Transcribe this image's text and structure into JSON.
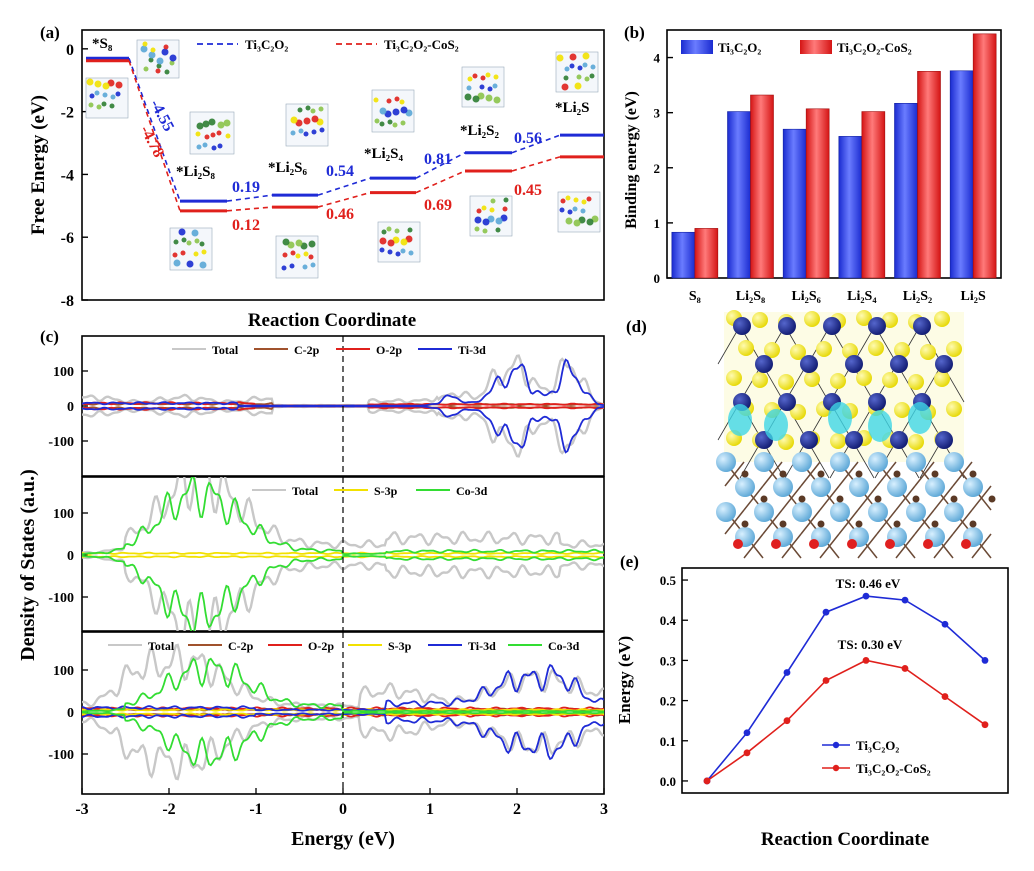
{
  "chart_data": [
    {
      "type": "line",
      "panel_label": "(a)",
      "xlabel": "Reaction Coordinate",
      "ylabel": "Free Energy (eV)",
      "ylim": [
        -8,
        0.6
      ],
      "y_ticks": [
        "0",
        "-2",
        "-4",
        "-6",
        "-8"
      ],
      "x_ticks": [],
      "states": [
        "*S8",
        "*Li2S8",
        "*Li2S6",
        "*Li2S4",
        "*Li2S2",
        "*Li2S"
      ],
      "state_labels": [
        "*S₈",
        "*Li₂S₈",
        "*Li₂S₆",
        "*Li₂S₄",
        "*Li₂S₂",
        "*Li₂S"
      ],
      "series": [
        {
          "name": "Ti₃C₂O₂",
          "color": "#1f2bd6",
          "values": [
            -0.3,
            -4.85,
            -4.66,
            -4.12,
            -3.31,
            -2.75
          ],
          "step_labels": [
            "-4.55",
            "0.19",
            "0.54",
            "0.81",
            "0.56"
          ]
        },
        {
          "name": "Ti₃C₂O₂-CoS₂",
          "color": "#e0201c",
          "values": [
            -0.38,
            -5.16,
            -5.04,
            -4.58,
            -3.89,
            -3.44
          ],
          "step_labels": [
            "-4.78",
            "0.12",
            "0.46",
            "0.69",
            "0.45"
          ]
        }
      ]
    },
    {
      "type": "bar",
      "panel_label": "(b)",
      "ylabel": "Binding energy (eV)",
      "ylim": [
        0,
        4.5
      ],
      "y_ticks": [
        "0",
        "1",
        "2",
        "3",
        "4"
      ],
      "categories": [
        "S8",
        "Li2S8",
        "Li2S6",
        "Li2S4",
        "Li2S2",
        "Li2S"
      ],
      "category_labels": [
        "S₈",
        "Li₂S₈",
        "Li₂S₆",
        "Li₂S₄",
        "Li₂S₂",
        "Li₂S"
      ],
      "legend": "top",
      "series": [
        {
          "name": "Ti₃C₂O₂",
          "color": "#2b3ff0",
          "values": [
            0.83,
            3.02,
            2.7,
            2.57,
            3.17,
            3.76
          ]
        },
        {
          "name": "Ti₃C₂O₂-CoS₂",
          "color": "#ef1f1f",
          "values": [
            0.9,
            3.32,
            3.07,
            3.02,
            3.75,
            4.43
          ]
        }
      ]
    },
    {
      "type": "line",
      "panel_label": "(c)",
      "xlabel": "Energy (eV)",
      "ylabel": "Density of States (a.u.)",
      "xlim": [
        -3,
        3
      ],
      "x_ticks": [
        "-3",
        "-2",
        "-1",
        "0",
        "1",
        "2",
        "3"
      ],
      "subplots": [
        {
          "ylim": [
            -160,
            160
          ],
          "y_ticks": [
            "100",
            "0",
            "-100"
          ],
          "legend": [
            "Total",
            "C-2p",
            "O-2p",
            "Ti-3d"
          ],
          "legend_colors": [
            "#c8c8c8",
            "#a0522d",
            "#e0201c",
            "#1f2bd6"
          ]
        },
        {
          "ylim": [
            -160,
            160
          ],
          "y_ticks": [
            "100",
            "0",
            "-100"
          ],
          "legend": [
            "Total",
            "S-3p",
            "Co-3d"
          ],
          "legend_colors": [
            "#c8c8c8",
            "#f2e100",
            "#33dd33"
          ]
        },
        {
          "ylim": [
            -160,
            160
          ],
          "y_ticks": [
            "100",
            "0",
            "-100"
          ],
          "legend": [
            "Total",
            "C-2p",
            "O-2p",
            "S-3p",
            "Ti-3d",
            "Co-3d"
          ],
          "legend_colors": [
            "#c8c8c8",
            "#a0522d",
            "#e0201c",
            "#f2e100",
            "#1f2bd6",
            "#33dd33"
          ]
        }
      ]
    },
    {
      "type": "line",
      "panel_label": "(e)",
      "xlabel": "Reaction Coordinate",
      "ylabel": "Energy (eV)",
      "ylim": [
        -0.03,
        0.53
      ],
      "y_ticks": [
        "0.0",
        "0.1",
        "0.2",
        "0.3",
        "0.4",
        "0.5"
      ],
      "annotations": [
        "TS: 0.46 eV",
        "TS: 0.30 eV"
      ],
      "legend": "bottom-right",
      "series": [
        {
          "name": "Ti₃C₂O₂",
          "color": "#1f2bd6",
          "values": [
            0.0,
            0.12,
            0.27,
            0.42,
            0.46,
            0.45,
            0.39,
            0.3
          ]
        },
        {
          "name": "Ti₃C₂O₂-CoS₂",
          "color": "#e0201c",
          "values": [
            0.0,
            0.07,
            0.15,
            0.25,
            0.3,
            0.28,
            0.21,
            0.14
          ]
        }
      ]
    }
  ],
  "panel_d": {
    "label": "(d)"
  }
}
